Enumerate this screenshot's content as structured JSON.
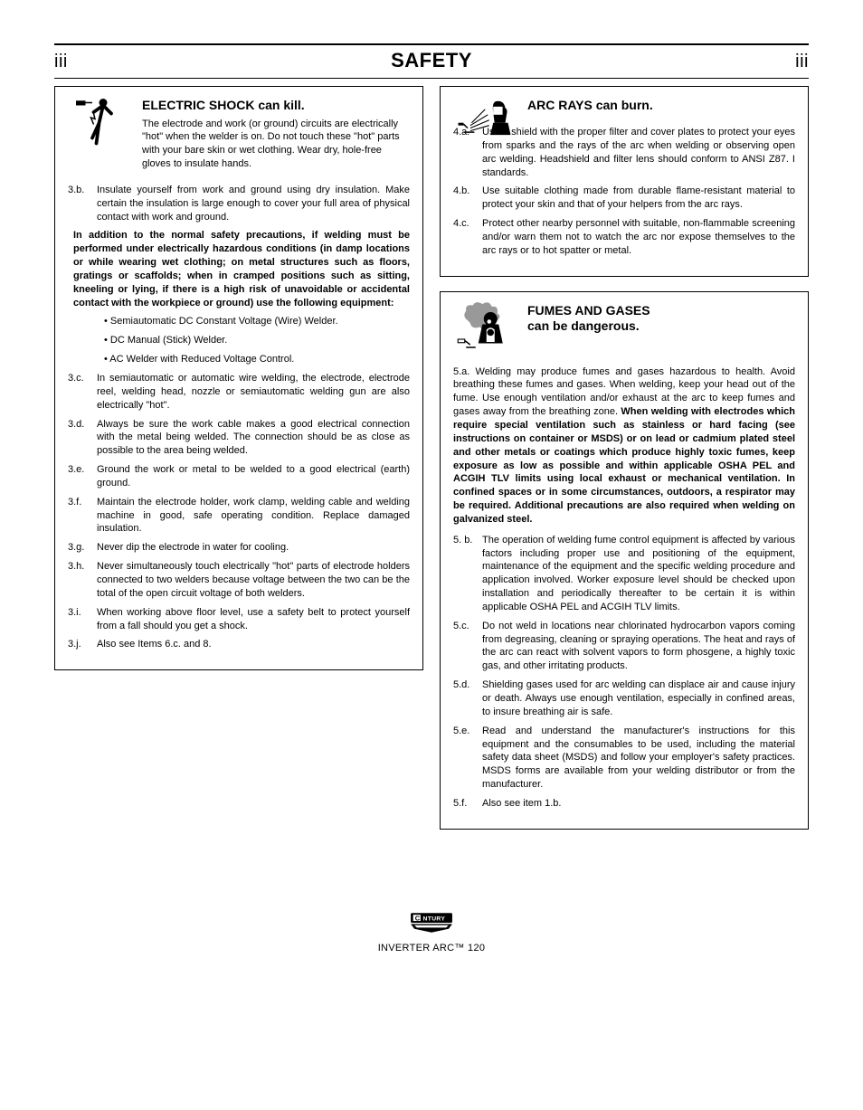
{
  "header": {
    "left_page": "iii",
    "right_page": "iii",
    "title": "SAFETY"
  },
  "boxes": {
    "shock": {
      "title": "ELECTRIC SHOCK can kill.",
      "intro": "The electrode and work (or ground) circuits are electrically \"hot\" when the welder is on. Do not touch these \"hot\" parts with your bare skin or wet clothing. Wear dry, hole-free gloves to insulate hands.",
      "items": [
        {
          "m": "3.b.",
          "t": "Insulate yourself from work and ground using dry insulation. Make certain the insulation is large enough to cover your full area of physical contact with work and ground."
        },
        {
          "m": "",
          "t": "In addition to the normal safety precautions, if welding must be performed under electrically hazardous conditions (in damp locations or while wearing wet clothing; on metal structures such as floors, gratings or scaffolds; when in cramped positions such as sitting, kneeling or lying, if there is a high risk of unavoidable or accidental contact with the workpiece or ground) use the following equipment:",
          "bold": true
        },
        {
          "m": "",
          "t": "• Semiautomatic DC Constant Voltage (Wire) Welder.",
          "indent": true
        },
        {
          "m": "",
          "t": "• DC Manual (Stick) Welder.",
          "indent": true
        },
        {
          "m": "",
          "t": "• AC Welder with Reduced Voltage Control.",
          "indent": true
        },
        {
          "m": "3.c.",
          "t": "In semiautomatic or automatic wire welding, the electrode, electrode reel, welding head, nozzle or semiautomatic welding gun are also electrically \"hot\"."
        },
        {
          "m": "3.d.",
          "t": "Always be sure the work cable makes a good electrical connection with the metal being welded. The connection should be as close as possible to the area being welded."
        },
        {
          "m": "3.e.",
          "t": "Ground the work or metal to be welded to a good electrical (earth) ground."
        },
        {
          "m": "3.f.",
          "t": "Maintain the electrode holder, work clamp, welding cable and welding machine in good, safe operating condition. Replace damaged insulation."
        },
        {
          "m": "3.g.",
          "t": "Never dip the electrode in water for cooling."
        },
        {
          "m": "3.h.",
          "t": "Never simultaneously touch electrically \"hot\" parts of electrode holders connected to two welders because voltage between the two can be the total of the open circuit voltage of both welders."
        },
        {
          "m": "3.i.",
          "t": "When working above floor level, use a safety belt to protect yourself from a fall should you get a shock."
        },
        {
          "m": "3.j.",
          "t": "Also see Items 6.c. and 8."
        }
      ]
    },
    "arc": {
      "title": "ARC RAYS can burn.",
      "items": [
        {
          "m": "4.a.",
          "t": "Use a shield with the proper filter and cover plates to protect your eyes from sparks and the rays of the arc when welding or observing open arc welding. Headshield and filter lens should conform to ANSI Z87. I standards."
        },
        {
          "m": "4.b.",
          "t": "Use suitable clothing made from durable flame-resistant material to protect your skin and that of your helpers from the arc rays."
        },
        {
          "m": "4.c.",
          "t": "Protect other nearby personnel with suitable, non-flammable screening and/or warn them not to watch the arc nor expose themselves to the arc rays or to hot spatter or metal."
        }
      ]
    },
    "fumes": {
      "title_line1": "FUMES AND GASES",
      "title_line2": "can be dangerous.",
      "intro": "5.a. Welding may produce fumes and gases hazardous to health. Avoid breathing these fumes and gases. When welding, keep your head out of the fume. Use enough ventilation and/or exhaust at the arc to keep fumes and gases away from the breathing zone. ",
      "intro_bold": "When welding with electrodes which require special ventilation such as stainless or hard facing (see instructions on container or MSDS) or on lead or cadmium plated steel and other metals or coatings which produce highly toxic fumes, keep exposure as low as possible and within applicable OSHA PEL and ACGIH TLV limits using local exhaust or mechanical ventilation. In confined spaces or in some circumstances, outdoors, a respirator may be required. Additional precautions are also required when welding on galvanized steel.",
      "items": [
        {
          "m": "5. b.",
          "t": "The operation of welding fume control equipment is affected by various factors including proper use and positioning of the equipment, maintenance of the equipment and the specific welding procedure and application involved. Worker exposure level should be checked upon installation and periodically thereafter to be certain it is within applicable OSHA PEL and ACGIH TLV limits."
        },
        {
          "m": "5.c.",
          "t": "Do not weld in locations near chlorinated hydrocarbon vapors coming from degreasing, cleaning or spraying operations. The heat and rays of the arc can react with solvent vapors to form phosgene, a highly toxic gas, and other irritating products."
        },
        {
          "m": "5.d.",
          "t": "Shielding gases used for arc welding can displace air and cause injury or death. Always use enough ventilation, especially in confined areas, to insure breathing air is safe."
        },
        {
          "m": "5.e.",
          "t": "Read and understand the manufacturer's instructions for this equipment and the consumables to be used, including the material safety data sheet (MSDS) and follow your employer's safety practices. MSDS forms are available from your welding distributor or from the manufacturer."
        },
        {
          "m": "5.f.",
          "t": "Also see item 1.b."
        }
      ]
    }
  },
  "footer": {
    "model": "INVERTER ARC™ 120"
  }
}
